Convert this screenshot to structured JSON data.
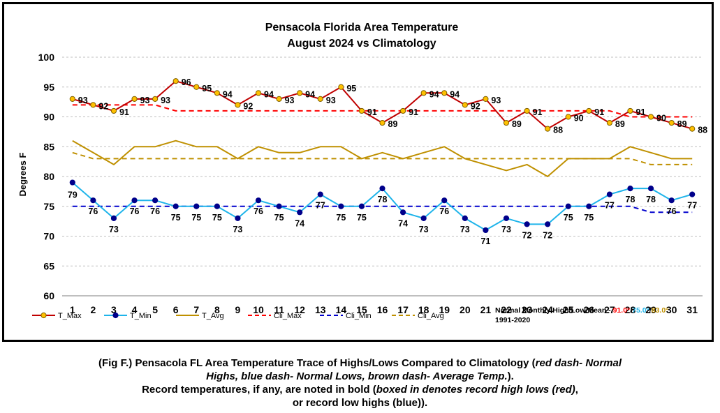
{
  "chart_data": {
    "type": "line",
    "title_line1": "Pensacola Florida Area Temperature",
    "title_line2": "August 2024 vs Climatology",
    "ylabel": "Degrees F",
    "ylim": [
      60,
      100
    ],
    "yticks": [
      60,
      65,
      70,
      75,
      80,
      85,
      90,
      95,
      100
    ],
    "x": [
      1,
      2,
      3,
      4,
      5,
      6,
      7,
      8,
      9,
      10,
      11,
      12,
      13,
      14,
      15,
      16,
      17,
      18,
      19,
      20,
      21,
      22,
      23,
      24,
      25,
      26,
      27,
      28,
      29,
      30,
      31
    ],
    "series": [
      {
        "name": "T_Max",
        "color": "#c00000",
        "marker_fill": "#ffc000",
        "marker": "circle",
        "labeled": true,
        "values": [
          93,
          92,
          91,
          93,
          93,
          96,
          95,
          94,
          92,
          94,
          93,
          94,
          93,
          95,
          91,
          89,
          91,
          94,
          94,
          92,
          93,
          89,
          91,
          88,
          90,
          91,
          89,
          91,
          90,
          89,
          88
        ]
      },
      {
        "name": "T_Min",
        "color": "#1eb4ea",
        "marker_fill": "#00008b",
        "marker": "circle",
        "labeled": true,
        "values": [
          79,
          76,
          73,
          76,
          76,
          75,
          75,
          75,
          73,
          76,
          75,
          74,
          77,
          75,
          75,
          78,
          74,
          73,
          76,
          73,
          71,
          73,
          72,
          72,
          75,
          75,
          77,
          78,
          78,
          76,
          77
        ]
      },
      {
        "name": "T_Avg",
        "color": "#bf9000",
        "marker": "none",
        "labeled": false,
        "values": [
          86,
          84,
          82,
          85,
          85,
          86,
          85,
          85,
          83,
          85,
          84,
          84,
          85,
          85,
          83,
          84,
          83,
          84,
          85,
          83,
          82,
          81,
          82,
          80,
          83,
          83,
          83,
          85,
          84,
          83,
          83
        ]
      },
      {
        "name": "Cli_Max",
        "color": "#ff0000",
        "dash": true,
        "marker": "none",
        "labeled": false,
        "values": [
          92,
          92,
          92,
          92,
          92,
          91,
          91,
          91,
          91,
          91,
          91,
          91,
          91,
          91,
          91,
          91,
          91,
          91,
          91,
          91,
          91,
          91,
          91,
          91,
          91,
          91,
          91,
          90,
          90,
          90,
          90
        ]
      },
      {
        "name": "Cli_Min",
        "color": "#0000cd",
        "dash": true,
        "marker": "none",
        "labeled": false,
        "values": [
          75,
          75,
          75,
          75,
          75,
          75,
          75,
          75,
          75,
          75,
          75,
          75,
          75,
          75,
          75,
          75,
          75,
          75,
          75,
          75,
          75,
          75,
          75,
          75,
          75,
          75,
          75,
          75,
          74,
          74,
          74
        ]
      },
      {
        "name": "Cli_Avg",
        "color": "#bf9000",
        "dash": true,
        "marker": "none",
        "labeled": false,
        "values": [
          84,
          83,
          83,
          83,
          83,
          83,
          83,
          83,
          83,
          83,
          83,
          83,
          83,
          83,
          83,
          83,
          83,
          83,
          83,
          83,
          83,
          83,
          83,
          83,
          83,
          83,
          83,
          83,
          82,
          82,
          82
        ]
      }
    ],
    "legend_position": "bottom",
    "normals": {
      "prefix": "Normal Monthly High/Low/Mean - ",
      "high": "91.0°",
      "low": "75.0°",
      "mean": "83.0°",
      "high_color": "#ff0000",
      "low_color": "#1eb4ea",
      "mean_color": "#bf9000",
      "sep": "/",
      "period": "1991-2020"
    },
    "grid": {
      "horizontal": "dashed",
      "vertical": "none"
    }
  },
  "caption": {
    "line1_prefix": "(Fig F.) Pensacola FL Area Temperature Trace of Highs/Lows Compared to Climatology (",
    "line1_italic": "red dash- Normal",
    "line2_italic": "Highs, blue dash- Normal Lows, brown dash- Average Temp.",
    "line2_suffix": ").",
    "line3_prefix": "Record temperatures, if any, are noted in bold (",
    "line3_italic": "boxed in denotes record high lows (red)",
    "line3_suffix": ",",
    "line4": "or record low highs (blue))."
  }
}
